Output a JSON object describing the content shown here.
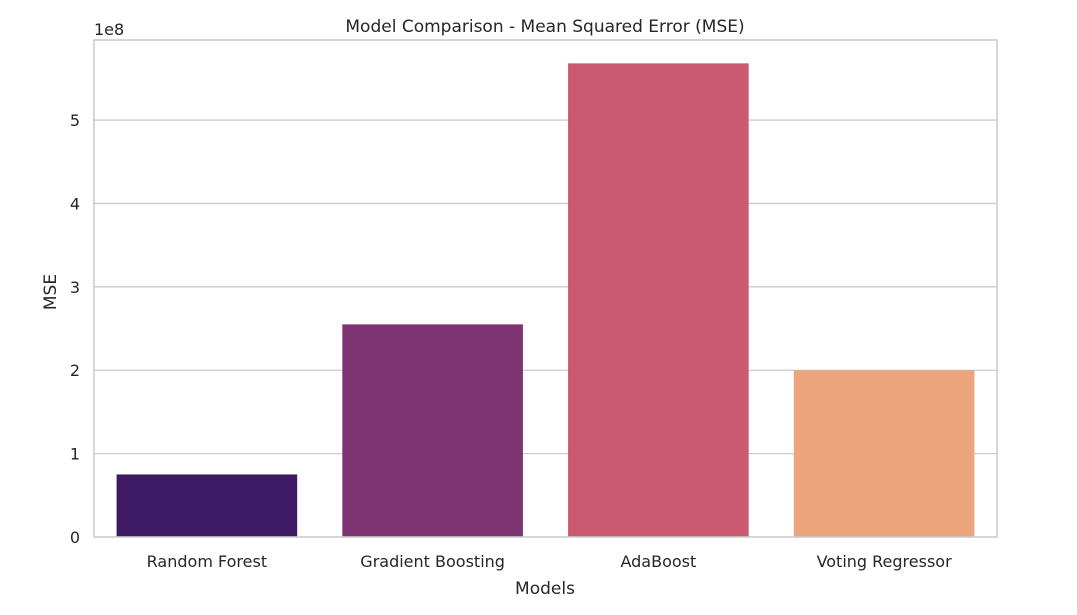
{
  "chart_data": {
    "type": "bar",
    "title": "Model Comparison - Mean Squared Error (MSE)",
    "xlabel": "Models",
    "ylabel": "MSE",
    "offset_label": "1e8",
    "categories": [
      "Random Forest",
      "Gradient Boosting",
      "AdaBoost",
      "Voting Regressor"
    ],
    "values": [
      75000000,
      255000000,
      568000000,
      200000000
    ],
    "colors": [
      "#3d1a63",
      "#7e3373",
      "#cb5a71",
      "#eca47d"
    ],
    "yticks": [
      0,
      1,
      2,
      3,
      4,
      5
    ],
    "ytick_labels": [
      "0",
      "1",
      "2",
      "3",
      "4",
      "5"
    ],
    "ylim": [
      0,
      596000000
    ],
    "grid": "horizontal"
  }
}
